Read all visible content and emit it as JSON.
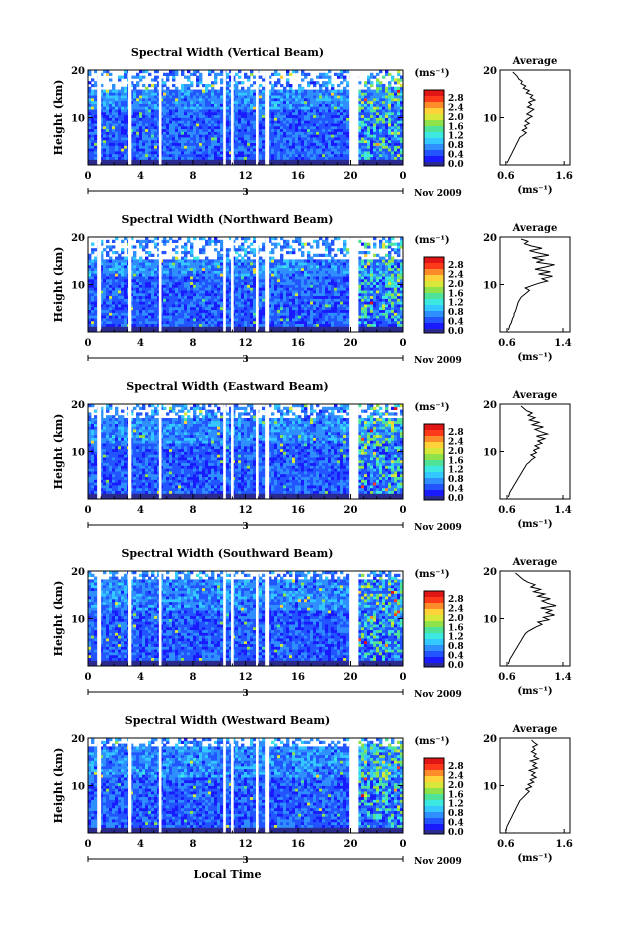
{
  "figure": {
    "xlabel": "Local Time",
    "date_label": "Nov 2009",
    "day_label": "3",
    "unit_label": "(ms⁻¹)",
    "average_title": "Average"
  },
  "colors": {
    "scale": [
      "#2a2a8f",
      "#1a1aff",
      "#2255ff",
      "#2f8fff",
      "#33c8ff",
      "#3de8e0",
      "#4fe39a",
      "#8fe24a",
      "#d8e83a",
      "#ffd23a",
      "#ff8c2a",
      "#ff3a1a",
      "#e01515"
    ],
    "background": "#ffffff"
  },
  "chart_data": [
    {
      "type": "heatmap",
      "title": "Spectral Width (Vertical Beam)",
      "ylabel": "Height (km)",
      "x_ticks": [
        "0",
        "4",
        "8",
        "12",
        "16",
        "20",
        "0"
      ],
      "y_ticks": [
        "20",
        "10"
      ],
      "xlim": [
        0,
        24
      ],
      "ylim": [
        0,
        20
      ],
      "colorbar_ticks": [
        "2.8",
        "2.4",
        "2.0",
        "1.6",
        "1.2",
        "0.8",
        "0.4",
        "0.0"
      ],
      "data_gaps_hours": [
        [
          0.7,
          1.0
        ],
        [
          3.05,
          3.3
        ],
        [
          5.4,
          5.6
        ],
        [
          10.3,
          10.5
        ],
        [
          10.9,
          11.1
        ],
        [
          12.8,
          13.0
        ],
        [
          13.5,
          13.8
        ],
        [
          19.9,
          20.6
        ]
      ],
      "high_cutoff_km": 16,
      "average": {
        "x_ticks": [
          "0.6",
          "1.6"
        ],
        "xlim": [
          0.5,
          1.7
        ],
        "y_ticks": [
          "20",
          "10"
        ],
        "xlabel": "(ms⁻¹)",
        "profile_ms": [
          0.62,
          0.64,
          0.66,
          0.68,
          0.7,
          0.72,
          0.74,
          0.76,
          0.78,
          0.8,
          0.82,
          0.84,
          0.9,
          0.95,
          0.88,
          0.96,
          0.92,
          1.0,
          0.93,
          0.98,
          1.05,
          0.96,
          1.02,
          1.08,
          0.97,
          1.04,
          0.99,
          1.1,
          1.02,
          1.06,
          0.95,
          1.0,
          0.9,
          0.94,
          0.86,
          0.88,
          0.82,
          0.8,
          0.76,
          0.72
        ]
      }
    },
    {
      "type": "heatmap",
      "title": "Spectral Width (Northward Beam)",
      "ylabel": "Height (km)",
      "x_ticks": [
        "0",
        "4",
        "8",
        "12",
        "16",
        "20",
        "0"
      ],
      "y_ticks": [
        "20",
        "10"
      ],
      "xlim": [
        0,
        24
      ],
      "ylim": [
        0,
        20
      ],
      "colorbar_ticks": [
        "2.8",
        "2.4",
        "2.0",
        "1.6",
        "1.2",
        "0.8",
        "0.4",
        "0.0"
      ],
      "data_gaps_hours": [
        [
          0.7,
          1.0
        ],
        [
          3.05,
          3.3
        ],
        [
          5.4,
          5.6
        ],
        [
          10.3,
          10.5
        ],
        [
          10.9,
          11.1
        ],
        [
          12.8,
          13.0
        ],
        [
          13.5,
          13.8
        ],
        [
          19.9,
          20.6
        ]
      ],
      "high_cutoff_km": 15,
      "average": {
        "x_ticks": [
          "0.6",
          "1.4"
        ],
        "xlim": [
          0.5,
          1.5
        ],
        "y_ticks": [
          "20",
          "10"
        ],
        "xlabel": "(ms⁻¹)",
        "profile_ms": [
          0.62,
          0.63,
          0.64,
          0.66,
          0.67,
          0.68,
          0.7,
          0.7,
          0.72,
          0.73,
          0.74,
          0.75,
          0.76,
          0.78,
          0.8,
          0.84,
          0.88,
          0.92,
          0.86,
          0.95,
          1.05,
          1.18,
          1.1,
          1.25,
          1.05,
          1.22,
          1.0,
          1.15,
          1.28,
          1.02,
          1.12,
          0.96,
          1.2,
          1.05,
          0.92,
          1.1,
          0.95,
          0.85,
          0.9,
          0.8
        ]
      }
    },
    {
      "type": "heatmap",
      "title": "Spectral Width (Eastward Beam)",
      "ylabel": "Height (km)",
      "x_ticks": [
        "0",
        "4",
        "8",
        "12",
        "16",
        "20",
        "0"
      ],
      "y_ticks": [
        "20",
        "10"
      ],
      "xlim": [
        0,
        24
      ],
      "ylim": [
        0,
        20
      ],
      "colorbar_ticks": [
        "2.8",
        "2.4",
        "2.0",
        "1.6",
        "1.2",
        "0.8",
        "0.4",
        "0.0"
      ],
      "data_gaps_hours": [
        [
          0.7,
          1.0
        ],
        [
          3.05,
          3.3
        ],
        [
          5.4,
          5.6
        ],
        [
          10.3,
          10.5
        ],
        [
          10.9,
          11.1
        ],
        [
          12.8,
          13.0
        ],
        [
          13.5,
          13.8
        ],
        [
          19.9,
          20.6
        ]
      ],
      "high_cutoff_km": 17,
      "average": {
        "x_ticks": [
          "0.6",
          "1.4"
        ],
        "xlim": [
          0.5,
          1.5
        ],
        "y_ticks": [
          "20",
          "10"
        ],
        "xlabel": "(ms⁻¹)",
        "profile_ms": [
          0.62,
          0.63,
          0.64,
          0.66,
          0.68,
          0.7,
          0.72,
          0.74,
          0.76,
          0.78,
          0.8,
          0.82,
          0.84,
          0.86,
          0.88,
          0.92,
          0.95,
          1.0,
          0.94,
          1.02,
          0.98,
          1.06,
          1.0,
          1.1,
          1.04,
          1.14,
          1.02,
          1.18,
          1.08,
          1.0,
          1.12,
          0.96,
          1.06,
          0.92,
          1.0,
          0.9,
          0.96,
          0.88,
          0.84,
          0.8
        ]
      }
    },
    {
      "type": "heatmap",
      "title": "Spectral Width (Southward Beam)",
      "ylabel": "Height (km)",
      "x_ticks": [
        "0",
        "4",
        "8",
        "12",
        "16",
        "20",
        "0"
      ],
      "y_ticks": [
        "20",
        "10"
      ],
      "xlim": [
        0,
        24
      ],
      "ylim": [
        0,
        20
      ],
      "colorbar_ticks": [
        "2.8",
        "2.4",
        "2.0",
        "1.6",
        "1.2",
        "0.8",
        "0.4",
        "0.0"
      ],
      "data_gaps_hours": [
        [
          0.7,
          1.0
        ],
        [
          3.05,
          3.3
        ],
        [
          5.4,
          5.6
        ],
        [
          10.3,
          10.5
        ],
        [
          10.9,
          11.1
        ],
        [
          12.8,
          13.0
        ],
        [
          13.5,
          13.8
        ],
        [
          19.9,
          20.6
        ]
      ],
      "high_cutoff_km": 18,
      "average": {
        "x_ticks": [
          "0.6",
          "1.4"
        ],
        "xlim": [
          0.5,
          1.5
        ],
        "y_ticks": [
          "20",
          "10"
        ],
        "xlabel": "(ms⁻¹)",
        "profile_ms": [
          0.62,
          0.63,
          0.64,
          0.66,
          0.68,
          0.7,
          0.72,
          0.74,
          0.76,
          0.78,
          0.8,
          0.82,
          0.84,
          0.86,
          0.9,
          0.96,
          1.02,
          1.1,
          1.04,
          1.2,
          1.12,
          1.28,
          1.16,
          1.24,
          1.08,
          1.3,
          1.18,
          1.1,
          1.22,
          1.04,
          1.14,
          0.98,
          1.08,
          0.94,
          1.0,
          0.9,
          0.84,
          0.8,
          0.76,
          0.72
        ]
      }
    },
    {
      "type": "heatmap",
      "title": "Spectral Width (Westward Beam)",
      "ylabel": "Height (km)",
      "x_ticks": [
        "0",
        "4",
        "8",
        "12",
        "16",
        "20",
        "0"
      ],
      "y_ticks": [
        "20",
        "10"
      ],
      "xlim": [
        0,
        24
      ],
      "ylim": [
        0,
        20
      ],
      "colorbar_ticks": [
        "2.8",
        "2.4",
        "2.0",
        "1.6",
        "1.2",
        "0.8",
        "0.4",
        "0.0"
      ],
      "data_gaps_hours": [
        [
          0.7,
          1.0
        ],
        [
          3.05,
          3.3
        ],
        [
          5.4,
          5.6
        ],
        [
          10.3,
          10.5
        ],
        [
          10.9,
          11.1
        ],
        [
          12.8,
          13.0
        ],
        [
          13.5,
          13.8
        ],
        [
          19.9,
          20.6
        ]
      ],
      "high_cutoff_km": 18,
      "average": {
        "x_ticks": [
          "0.6",
          "1.6"
        ],
        "xlim": [
          0.5,
          1.7
        ],
        "y_ticks": [
          "20",
          "10"
        ],
        "xlabel": "(ms⁻¹)",
        "profile_ms": [
          0.6,
          0.61,
          0.62,
          0.64,
          0.66,
          0.68,
          0.7,
          0.72,
          0.74,
          0.76,
          0.78,
          0.8,
          0.82,
          0.84,
          0.88,
          0.92,
          0.96,
          1.0,
          0.94,
          1.04,
          0.98,
          1.08,
          1.02,
          1.12,
          1.04,
          1.1,
          1.0,
          1.14,
          1.06,
          1.12,
          1.02,
          1.16,
          1.08,
          1.12,
          1.04,
          1.1,
          1.06,
          1.14,
          1.08,
          1.04
        ]
      }
    }
  ]
}
